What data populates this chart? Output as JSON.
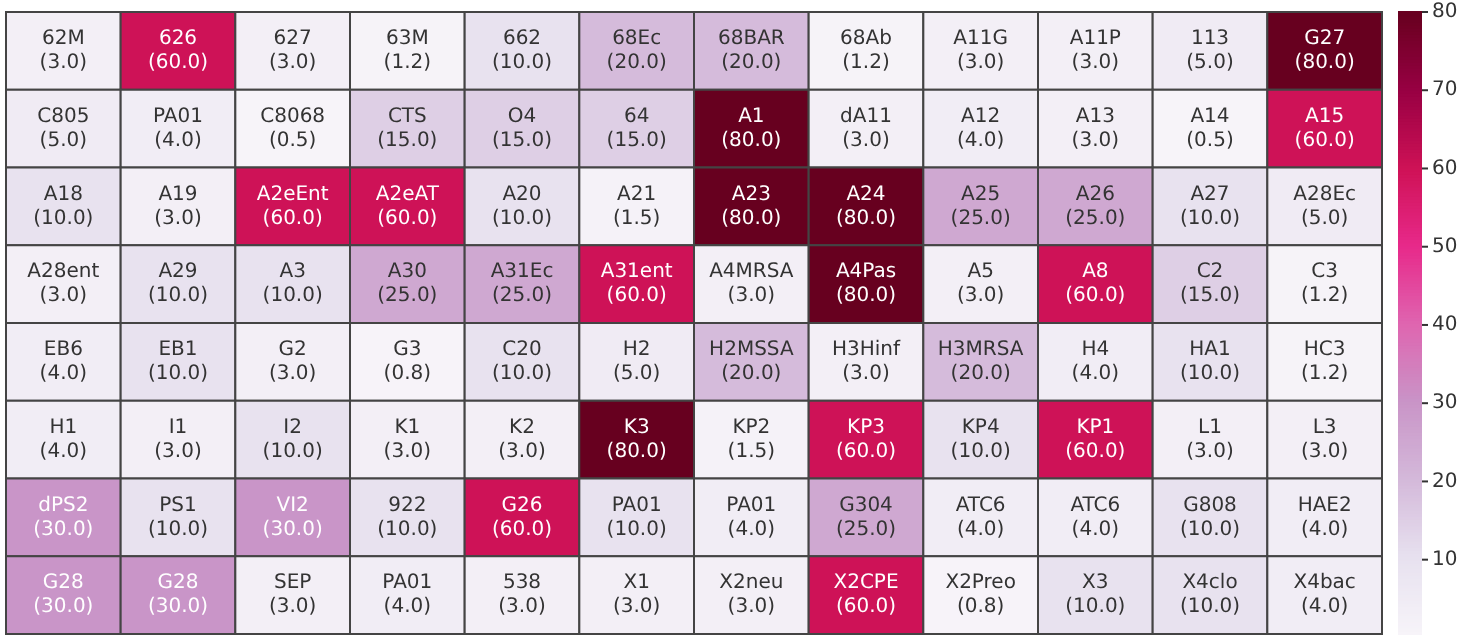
{
  "chart_data": {
    "type": "heatmap",
    "categories": [
      null,
      null,
      null,
      null,
      null,
      null,
      null,
      null,
      null,
      null,
      null,
      null
    ],
    "y_categories": [
      null,
      null,
      null,
      null,
      null,
      null,
      null,
      null
    ],
    "cells": [
      [
        3.0,
        60.0,
        3.0,
        1.2,
        10.0,
        20.0,
        20.0,
        1.2,
        3.0,
        3.0,
        5.0,
        80.0
      ],
      [
        5.0,
        4.0,
        0.5,
        15.0,
        15.0,
        15.0,
        80.0,
        3.0,
        4.0,
        3.0,
        0.5,
        60.0
      ],
      [
        10.0,
        3.0,
        60.0,
        60.0,
        10.0,
        1.5,
        80.0,
        80.0,
        25.0,
        25.0,
        10.0,
        5.0
      ],
      [
        3.0,
        10.0,
        10.0,
        25.0,
        25.0,
        60.0,
        3.0,
        80.0,
        3.0,
        60.0,
        15.0,
        1.2
      ],
      [
        4.0,
        10.0,
        3.0,
        0.8,
        10.0,
        5.0,
        20.0,
        3.0,
        20.0,
        4.0,
        10.0,
        1.2
      ],
      [
        4.0,
        3.0,
        10.0,
        3.0,
        3.0,
        80.0,
        1.5,
        60.0,
        10.0,
        60.0,
        3.0,
        3.0
      ],
      [
        30.0,
        10.0,
        30.0,
        10.0,
        60.0,
        10.0,
        4.0,
        25.0,
        4.0,
        4.0,
        10.0,
        4.0
      ],
      [
        30.0,
        30.0,
        3.0,
        4.0,
        3.0,
        3.0,
        3.0,
        60.0,
        0.8,
        10.0,
        10.0,
        4.0
      ]
    ],
    "cell_labels": [
      [
        "62M\n(3.0)",
        "626\n(60.0)",
        "627\n(3.0)",
        "63M\n(1.2)",
        "662\n(10.0)",
        "68Ec\n(20.0)",
        "68BAR\n(20.0)",
        "68Ab\n(1.2)",
        "A11G\n(3.0)",
        "A11P\n(3.0)",
        "113\n(5.0)",
        "G27\n(80.0)"
      ],
      [
        "C805\n(5.0)",
        "PA01\n(4.0)",
        "C8068\n(0.5)",
        "CTS\n(15.0)",
        "O4\n(15.0)",
        "64\n(15.0)",
        "A1\n(80.0)",
        "dA11\n(3.0)",
        "A12\n(4.0)",
        "A13\n(3.0)",
        "A14\n(0.5)",
        "A15\n(60.0)"
      ],
      [
        "A18\n(10.0)",
        "A19\n(3.0)",
        "A2eEnt\n(60.0)",
        "A2eAT\n(60.0)",
        "A20\n(10.0)",
        "A21\n(1.5)",
        "A23\n(80.0)",
        "A24\n(80.0)",
        "A25\n(25.0)",
        "A26\n(25.0)",
        "A27\n(10.0)",
        "A28Ec\n(5.0)"
      ],
      [
        "A28ent\n(3.0)",
        "A29\n(10.0)",
        "A3\n(10.0)",
        "A30\n(25.0)",
        "A31Ec\n(25.0)",
        "A31ent\n(60.0)",
        "A4MRSA\n(3.0)",
        "A4Pas\n(80.0)",
        "A5\n(3.0)",
        "A8\n(60.0)",
        "C2\n(15.0)",
        "C3\n(1.2)"
      ],
      [
        "EB6\n(4.0)",
        "EB1\n(10.0)",
        "G2\n(3.0)",
        "G3\n(0.8)",
        "C20\n(10.0)",
        "H2\n(5.0)",
        "H2MSSA\n(20.0)",
        "H3Hinf\n(3.0)",
        "H3MRSA\n(20.0)",
        "H4\n(4.0)",
        "HA1\n(10.0)",
        "HC3\n(1.2)"
      ],
      [
        "H1\n(4.0)",
        "I1\n(3.0)",
        "I2\n(10.0)",
        "K1\n(3.0)",
        "K2\n(3.0)",
        "K3\n(80.0)",
        "KP2\n(1.5)",
        "KP3\n(60.0)",
        "KP4\n(10.0)",
        "KP1\n(60.0)",
        "L1\n(3.0)",
        "L3\n(3.0)"
      ],
      [
        "dPS2\n(30.0)",
        "PS1\n(10.0)",
        "VI2\n(30.0)",
        "922\n(10.0)",
        "G26\n(60.0)",
        "PA01\n(10.0)",
        "PA01\n(4.0)",
        "G304\n(25.0)",
        "ATC6\n(4.0)",
        "ATC6\n(4.0)",
        "G808\n(10.0)",
        "HAE2\n(4.0)"
      ],
      [
        "G28\n(30.0)",
        "G28\n(30.0)",
        "SEP\n(3.0)",
        "PA01\n(4.0)",
        "538\n(3.0)",
        "X1\n(3.0)",
        "X2neu\n(3.0)",
        "X2CPE\n(60.0)",
        "X2Preo\n(0.8)",
        "X3\n(10.0)",
        "X4clo\n(10.0)",
        "X4bac\n(4.0)"
      ]
    ],
    "clim": [
      0.5,
      80
    ],
    "cticks": [
      10,
      20,
      30,
      40,
      50,
      60,
      70,
      80
    ],
    "tick_labels": false
  }
}
